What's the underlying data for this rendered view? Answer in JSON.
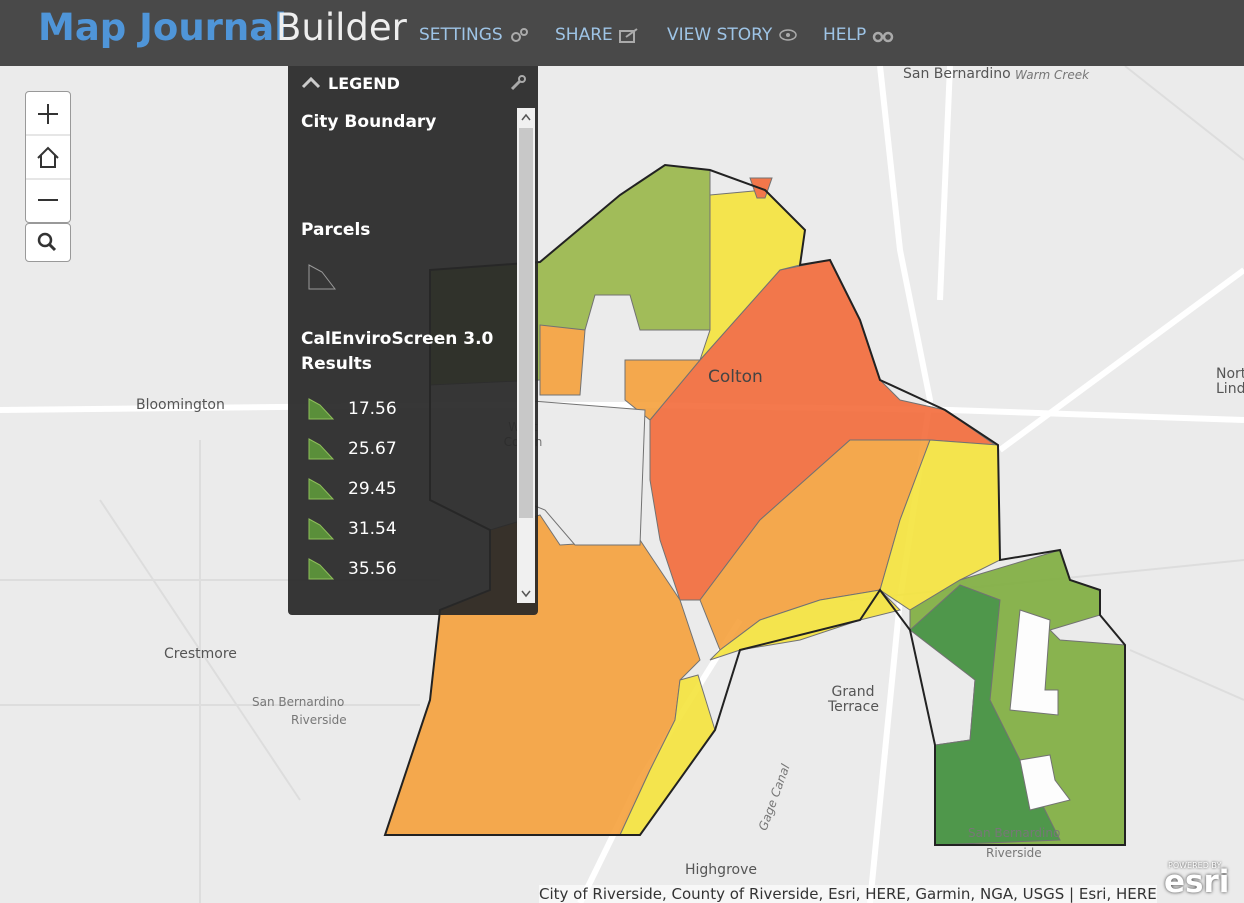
{
  "header": {
    "title": "Map Journal",
    "subtitle": "Builder",
    "nav": [
      "SETTINGS",
      "SHARE",
      "VIEW STORY",
      "HELP"
    ]
  },
  "legend": {
    "title": "LEGEND",
    "layers": [
      {
        "name": "City Boundary"
      },
      {
        "name": "Parcels"
      },
      {
        "name": "CalEnviroScreen 3.0 Results",
        "values": [
          17.56,
          25.67,
          29.45,
          31.54,
          35.56
        ]
      }
    ]
  },
  "map": {
    "labels": [
      "San Bernardino",
      "Warm Creek",
      "Colton",
      "Bloomington",
      "West Colton",
      "Crestmore",
      "San Bernardino",
      "Riverside",
      "Grand Terrace",
      "Gage Canal",
      "Highgrove",
      "San Bernardino",
      "Riverside",
      "Norton Linda"
    ],
    "attribution": "City of Riverside, County of Riverside, Esri, HERE, Garmin, NGA, USGS | Esri, HERE",
    "logo_small": "POWERED BY",
    "logo": "esri"
  }
}
